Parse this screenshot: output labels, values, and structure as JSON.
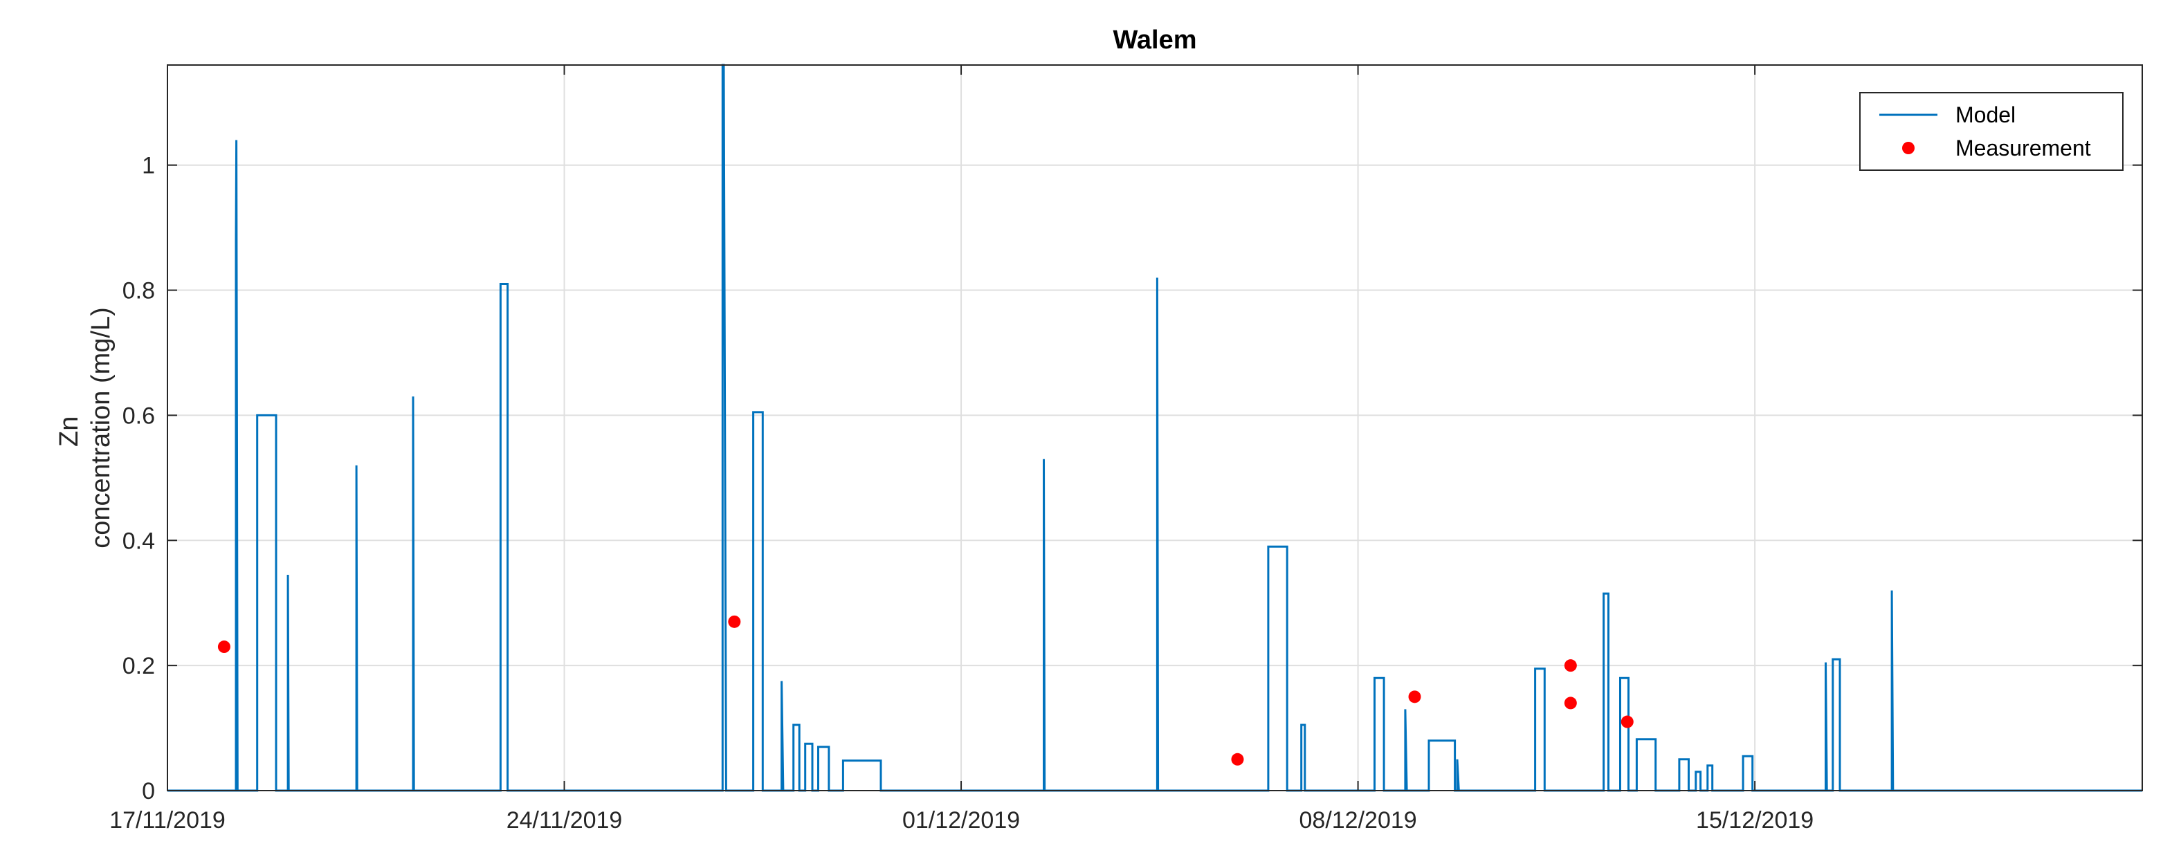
{
  "chart_data": {
    "type": "line",
    "title": "Walem",
    "xlabel": "",
    "ylabel": [
      "Zn",
      "concentration (mg/L)"
    ],
    "xlim": [
      "2019-11-17",
      "2019-12-21T20:00"
    ],
    "ylim": [
      0,
      1.16
    ],
    "grid": true,
    "legend_position": "top-right",
    "x_ticks": [
      {
        "date": "2019-11-17",
        "label": "17/11/2019"
      },
      {
        "date": "2019-11-24",
        "label": "24/11/2019"
      },
      {
        "date": "2019-12-01",
        "label": "01/12/2019"
      },
      {
        "date": "2019-12-08",
        "label": "08/12/2019"
      },
      {
        "date": "2019-12-15",
        "label": "15/12/2019"
      }
    ],
    "y_ticks": [
      {
        "value": 0,
        "label": "0"
      },
      {
        "value": 0.2,
        "label": "0.2"
      },
      {
        "value": 0.4,
        "label": "0.4"
      },
      {
        "value": 0.6,
        "label": "0.6"
      },
      {
        "value": 0.8,
        "label": "0.8"
      },
      {
        "value": 1,
        "label": "1"
      }
    ],
    "series": [
      {
        "name": "Model",
        "style": "line",
        "color": "#0072BD",
        "points": [
          [
            "2019-11-17T00:00",
            0
          ],
          [
            "2019-11-18T05:00",
            0
          ],
          [
            "2019-11-18T05:00",
            0.88
          ],
          [
            "2019-11-18T05:10",
            1.04
          ],
          [
            "2019-11-18T05:25",
            0.6
          ],
          [
            "2019-11-18T05:40",
            0
          ],
          [
            "2019-11-18T14:00",
            0
          ],
          [
            "2019-11-18T14:00",
            0.6
          ],
          [
            "2019-11-18T22:00",
            0.6
          ],
          [
            "2019-11-18T22:00",
            0
          ],
          [
            "2019-11-19T03:00",
            0
          ],
          [
            "2019-11-19T03:00",
            0.345
          ],
          [
            "2019-11-19T03:20",
            0
          ],
          [
            "2019-11-20T08:00",
            0
          ],
          [
            "2019-11-20T08:00",
            0.52
          ],
          [
            "2019-11-20T08:20",
            0
          ],
          [
            "2019-11-21T08:00",
            0
          ],
          [
            "2019-11-21T08:00",
            0.63
          ],
          [
            "2019-11-21T08:20",
            0
          ],
          [
            "2019-11-22T21:00",
            0
          ],
          [
            "2019-11-22T21:00",
            0.81
          ],
          [
            "2019-11-23T00:00",
            0.81
          ],
          [
            "2019-11-23T00:00",
            0
          ],
          [
            "2019-11-26T19:00",
            0
          ],
          [
            "2019-11-26T19:00",
            1.16
          ],
          [
            "2019-11-26T19:30",
            1.16
          ],
          [
            "2019-11-26T20:30",
            0
          ],
          [
            "2019-11-27T08:00",
            0
          ],
          [
            "2019-11-27T08:00",
            0.605
          ],
          [
            "2019-11-27T12:00",
            0.605
          ],
          [
            "2019-11-27T12:00",
            0
          ],
          [
            "2019-11-27T20:00",
            0
          ],
          [
            "2019-11-27T20:00",
            0.175
          ],
          [
            "2019-11-27T20:40",
            0
          ],
          [
            "2019-11-28T01:00",
            0
          ],
          [
            "2019-11-28T01:00",
            0.105
          ],
          [
            "2019-11-28T03:30",
            0.105
          ],
          [
            "2019-11-28T03:30",
            0
          ],
          [
            "2019-11-28T06:00",
            0
          ],
          [
            "2019-11-28T06:00",
            0.075
          ],
          [
            "2019-11-28T09:00",
            0.075
          ],
          [
            "2019-11-28T09:00",
            0
          ],
          [
            "2019-11-28T11:30",
            0
          ],
          [
            "2019-11-28T11:30",
            0.07
          ],
          [
            "2019-11-28T16:00",
            0.07
          ],
          [
            "2019-11-28T16:00",
            0
          ],
          [
            "2019-11-28T22:00",
            0
          ],
          [
            "2019-11-28T22:00",
            0.048
          ],
          [
            "2019-11-29T14:00",
            0.048
          ],
          [
            "2019-11-29T14:00",
            0
          ],
          [
            "2019-12-02T11:00",
            0
          ],
          [
            "2019-12-02T11:00",
            0.53
          ],
          [
            "2019-12-02T11:20",
            0
          ],
          [
            "2019-12-04T11:00",
            0
          ],
          [
            "2019-12-04T11:00",
            0.82
          ],
          [
            "2019-12-04T11:20",
            0
          ],
          [
            "2019-12-06T10:00",
            0
          ],
          [
            "2019-12-06T10:00",
            0.39
          ],
          [
            "2019-12-06T18:00",
            0.39
          ],
          [
            "2019-12-06T18:00",
            0
          ],
          [
            "2019-12-07T00:00",
            0
          ],
          [
            "2019-12-07T00:00",
            0.105
          ],
          [
            "2019-12-07T01:30",
            0.105
          ],
          [
            "2019-12-07T01:30",
            0
          ],
          [
            "2019-12-08T07:00",
            0
          ],
          [
            "2019-12-08T07:00",
            0.18
          ],
          [
            "2019-12-08T11:00",
            0.18
          ],
          [
            "2019-12-08T11:00",
            0
          ],
          [
            "2019-12-08T20:00",
            0
          ],
          [
            "2019-12-08T20:00",
            0.13
          ],
          [
            "2019-12-08T20:40",
            0
          ],
          [
            "2019-12-09T06:00",
            0
          ],
          [
            "2019-12-09T06:00",
            0.08
          ],
          [
            "2019-12-09T17:00",
            0.08
          ],
          [
            "2019-12-09T17:00",
            0
          ],
          [
            "2019-12-09T18:00",
            0
          ],
          [
            "2019-12-09T18:00",
            0.05
          ],
          [
            "2019-12-09T18:40",
            0
          ],
          [
            "2019-12-11T03:00",
            0
          ],
          [
            "2019-12-11T03:00",
            0.195
          ],
          [
            "2019-12-11T07:00",
            0.195
          ],
          [
            "2019-12-11T07:00",
            0
          ],
          [
            "2019-12-12T08:00",
            0
          ],
          [
            "2019-12-12T08:00",
            0.315
          ],
          [
            "2019-12-12T10:00",
            0.315
          ],
          [
            "2019-12-12T10:00",
            0
          ],
          [
            "2019-12-12T15:00",
            0
          ],
          [
            "2019-12-12T15:00",
            0.18
          ],
          [
            "2019-12-12T18:30",
            0.18
          ],
          [
            "2019-12-12T18:30",
            0
          ],
          [
            "2019-12-12T22:00",
            0
          ],
          [
            "2019-12-12T22:00",
            0.082
          ],
          [
            "2019-12-13T06:00",
            0.082
          ],
          [
            "2019-12-13T06:00",
            0
          ],
          [
            "2019-12-13T16:00",
            0
          ],
          [
            "2019-12-13T16:00",
            0.05
          ],
          [
            "2019-12-13T20:00",
            0.05
          ],
          [
            "2019-12-13T20:00",
            0
          ],
          [
            "2019-12-13T23:00",
            0
          ],
          [
            "2019-12-13T23:00",
            0.03
          ],
          [
            "2019-12-14T01:00",
            0.03
          ],
          [
            "2019-12-14T01:00",
            0
          ],
          [
            "2019-12-14T04:00",
            0
          ],
          [
            "2019-12-14T04:00",
            0.04
          ],
          [
            "2019-12-14T06:00",
            0.04
          ],
          [
            "2019-12-14T06:00",
            0
          ],
          [
            "2019-12-14T19:00",
            0
          ],
          [
            "2019-12-14T19:00",
            0.055
          ],
          [
            "2019-12-14T23:00",
            0.055
          ],
          [
            "2019-12-14T23:00",
            0
          ],
          [
            "2019-12-16T06:00",
            0
          ],
          [
            "2019-12-16T06:00",
            0.205
          ],
          [
            "2019-12-16T06:30",
            0
          ],
          [
            "2019-12-16T09:00",
            0
          ],
          [
            "2019-12-16T09:00",
            0.21
          ],
          [
            "2019-12-16T12:00",
            0.21
          ],
          [
            "2019-12-16T12:00",
            0
          ],
          [
            "2019-12-17T10:00",
            0
          ],
          [
            "2019-12-17T10:00",
            0.32
          ],
          [
            "2019-12-17T10:30",
            0
          ],
          [
            "2019-12-21T20:00",
            0
          ]
        ]
      },
      {
        "name": "Measurement",
        "style": "marker",
        "color": "#FF0000",
        "points": [
          [
            "2019-11-18T00:00",
            0.23
          ],
          [
            "2019-11-27T00:00",
            0.27
          ],
          [
            "2019-12-05T21:00",
            0.05
          ],
          [
            "2019-12-09T00:00",
            0.15
          ],
          [
            "2019-12-11T18:00",
            0.2
          ],
          [
            "2019-12-11T18:00",
            0.14
          ],
          [
            "2019-12-12T18:00",
            0.11
          ]
        ]
      }
    ]
  },
  "colors": {
    "axis": "#262626",
    "grid": "#dfdfdf",
    "model": "#0072BD",
    "measurement": "#FF0000"
  }
}
